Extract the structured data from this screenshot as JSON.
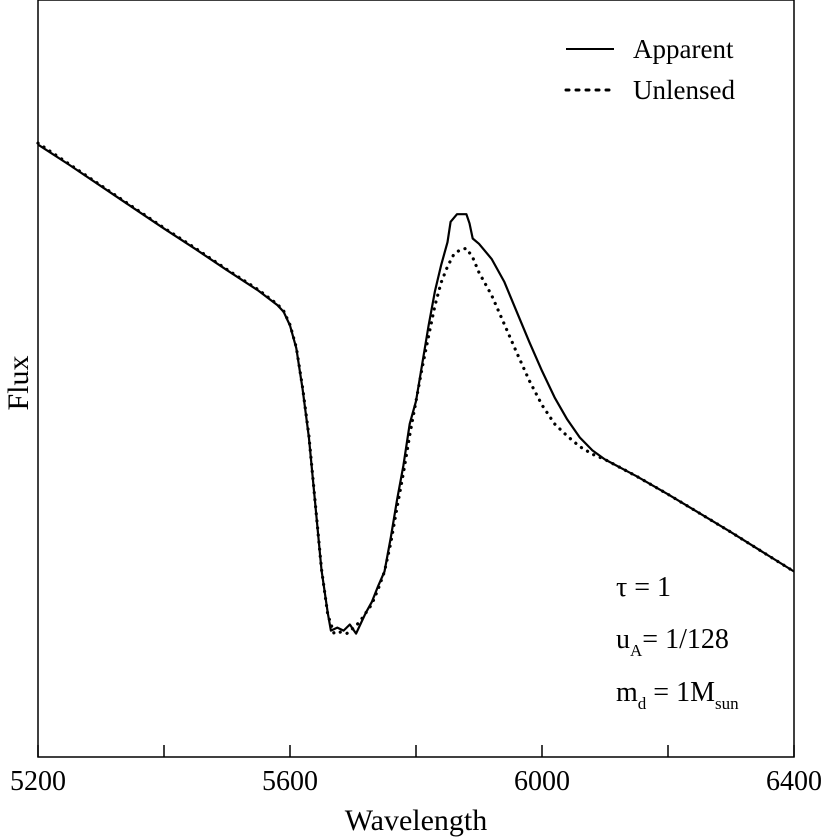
{
  "chart_data": {
    "type": "line",
    "title": "",
    "xlabel": "Wavelength",
    "ylabel": "Flux",
    "xlim": [
      5200,
      6400
    ],
    "ylim": [
      0,
      1
    ],
    "yticks_labeled": false,
    "grid": false,
    "legend_position": "top-right",
    "x_ticks": [
      5200,
      5600,
      6000,
      6400
    ],
    "x_minor_ticks": [
      5400,
      5800,
      6200
    ],
    "series": [
      {
        "name": "Apparent",
        "style": "solid",
        "color": "#000000",
        "points": [
          [
            5200,
            0.809
          ],
          [
            5250,
            0.782
          ],
          [
            5300,
            0.754
          ],
          [
            5350,
            0.726
          ],
          [
            5400,
            0.698
          ],
          [
            5450,
            0.671
          ],
          [
            5500,
            0.643
          ],
          [
            5550,
            0.616
          ],
          [
            5580,
            0.597
          ],
          [
            5590,
            0.588
          ],
          [
            5600,
            0.57
          ],
          [
            5610,
            0.54
          ],
          [
            5620,
            0.486
          ],
          [
            5630,
            0.422
          ],
          [
            5640,
            0.335
          ],
          [
            5650,
            0.247
          ],
          [
            5660,
            0.19
          ],
          [
            5665,
            0.167
          ],
          [
            5675,
            0.171
          ],
          [
            5685,
            0.167
          ],
          [
            5695,
            0.175
          ],
          [
            5705,
            0.163
          ],
          [
            5715,
            0.181
          ],
          [
            5720,
            0.19
          ],
          [
            5730,
            0.205
          ],
          [
            5740,
            0.226
          ],
          [
            5750,
            0.245
          ],
          [
            5760,
            0.29
          ],
          [
            5770,
            0.34
          ],
          [
            5780,
            0.385
          ],
          [
            5790,
            0.44
          ],
          [
            5800,
            0.47
          ],
          [
            5810,
            0.52
          ],
          [
            5820,
            0.57
          ],
          [
            5830,
            0.615
          ],
          [
            5840,
            0.65
          ],
          [
            5850,
            0.68
          ],
          [
            5855,
            0.707
          ],
          [
            5865,
            0.717
          ],
          [
            5880,
            0.717
          ],
          [
            5885,
            0.705
          ],
          [
            5890,
            0.685
          ],
          [
            5900,
            0.678
          ],
          [
            5920,
            0.658
          ],
          [
            5940,
            0.628
          ],
          [
            5960,
            0.588
          ],
          [
            5980,
            0.548
          ],
          [
            6000,
            0.51
          ],
          [
            6020,
            0.475
          ],
          [
            6040,
            0.446
          ],
          [
            6060,
            0.422
          ],
          [
            6080,
            0.405
          ],
          [
            6100,
            0.393
          ],
          [
            6150,
            0.371
          ],
          [
            6200,
            0.347
          ],
          [
            6250,
            0.322
          ],
          [
            6300,
            0.297
          ],
          [
            6350,
            0.271
          ],
          [
            6400,
            0.245
          ]
        ]
      },
      {
        "name": "Unlensed",
        "style": "dotted",
        "color": "#000000",
        "points": [
          [
            5200,
            0.811
          ],
          [
            5250,
            0.783
          ],
          [
            5300,
            0.755
          ],
          [
            5350,
            0.727
          ],
          [
            5400,
            0.699
          ],
          [
            5450,
            0.672
          ],
          [
            5500,
            0.644
          ],
          [
            5550,
            0.617
          ],
          [
            5580,
            0.598
          ],
          [
            5590,
            0.589
          ],
          [
            5600,
            0.571
          ],
          [
            5610,
            0.541
          ],
          [
            5620,
            0.488
          ],
          [
            5630,
            0.424
          ],
          [
            5640,
            0.336
          ],
          [
            5650,
            0.248
          ],
          [
            5660,
            0.188
          ],
          [
            5670,
            0.163
          ],
          [
            5680,
            0.165
          ],
          [
            5690,
            0.163
          ],
          [
            5700,
            0.17
          ],
          [
            5710,
            0.178
          ],
          [
            5720,
            0.19
          ],
          [
            5730,
            0.202
          ],
          [
            5740,
            0.222
          ],
          [
            5750,
            0.245
          ],
          [
            5760,
            0.283
          ],
          [
            5770,
            0.33
          ],
          [
            5780,
            0.375
          ],
          [
            5790,
            0.425
          ],
          [
            5800,
            0.47
          ],
          [
            5810,
            0.515
          ],
          [
            5820,
            0.556
          ],
          [
            5830,
            0.596
          ],
          [
            5840,
            0.627
          ],
          [
            5850,
            0.648
          ],
          [
            5860,
            0.664
          ],
          [
            5870,
            0.67
          ],
          [
            5880,
            0.672
          ],
          [
            5890,
            0.66
          ],
          [
            5900,
            0.64
          ],
          [
            5920,
            0.61
          ],
          [
            5940,
            0.572
          ],
          [
            5960,
            0.534
          ],
          [
            5980,
            0.497
          ],
          [
            6000,
            0.465
          ],
          [
            6020,
            0.44
          ],
          [
            6040,
            0.424
          ],
          [
            6060,
            0.41
          ],
          [
            6080,
            0.4
          ],
          [
            6100,
            0.393
          ],
          [
            6150,
            0.371
          ],
          [
            6200,
            0.347
          ],
          [
            6250,
            0.322
          ],
          [
            6300,
            0.297
          ],
          [
            6350,
            0.271
          ],
          [
            6400,
            0.245
          ]
        ]
      }
    ],
    "annotations": [
      {
        "text": "τ = 1",
        "main": "τ = 1",
        "sub": "",
        "post": "",
        "post_sub": ""
      },
      {
        "text": "uA= 1/128",
        "main": "u",
        "sub": "A",
        "post": "= 1/128",
        "post_sub": ""
      },
      {
        "text": "md = 1Msun",
        "main": "m",
        "sub": "d",
        "post": " = 1M",
        "post_sub": "sun"
      }
    ]
  }
}
